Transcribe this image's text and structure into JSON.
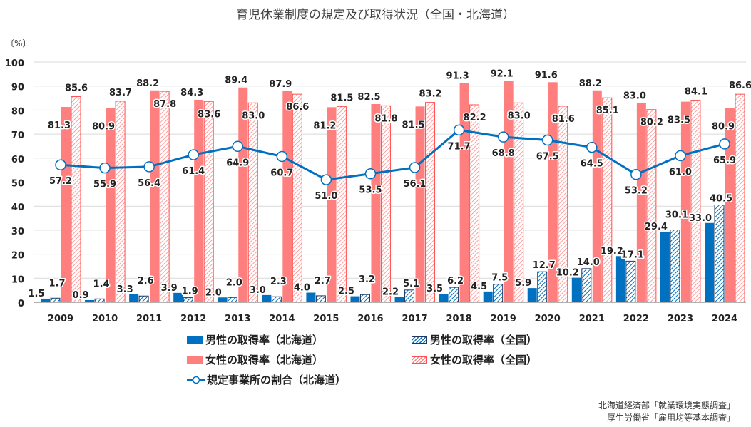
{
  "chart_data": {
    "type": "bar",
    "title": "育児休業制度の規定及び取得状況（全国・北海道）",
    "ylabel": "〔%〕",
    "ylim": [
      0,
      100
    ],
    "yticks": [
      0,
      10,
      20,
      30,
      40,
      50,
      60,
      70,
      80,
      90,
      100
    ],
    "grid": true,
    "legend_placement": "bottom",
    "categories": [
      "2009",
      "2010",
      "2011",
      "2012",
      "2013",
      "2014",
      "2015",
      "2016",
      "2017",
      "2018",
      "2019",
      "2020",
      "2021",
      "2022",
      "2023",
      "2024"
    ],
    "series": [
      {
        "name": "男性の取得率（北海道）",
        "kind": "bar",
        "color": "#0070c0",
        "pattern": "solid",
        "values": [
          1.5,
          0.9,
          3.3,
          3.9,
          2.0,
          3.0,
          4.0,
          2.5,
          2.2,
          3.5,
          4.5,
          5.9,
          10.2,
          19.2,
          29.4,
          33.0
        ]
      },
      {
        "name": "男性の取得率（全国）",
        "kind": "bar",
        "color": "#1f3864",
        "pattern": "hatch",
        "values": [
          1.7,
          1.4,
          2.6,
          1.9,
          2.0,
          2.3,
          2.7,
          3.2,
          5.1,
          6.2,
          7.5,
          12.7,
          14.0,
          17.1,
          30.1,
          40.5
        ]
      },
      {
        "name": "女性の取得率（北海道）",
        "kind": "bar",
        "color": "#ff7f7f",
        "pattern": "solid",
        "values": [
          81.3,
          80.9,
          88.2,
          84.3,
          89.4,
          87.9,
          81.2,
          82.5,
          81.5,
          91.3,
          92.1,
          91.6,
          88.2,
          83.0,
          83.5,
          80.9
        ]
      },
      {
        "name": "女性の取得率（全国）",
        "kind": "bar",
        "color": "#ff5050",
        "pattern": "hatch",
        "values": [
          85.6,
          83.7,
          87.8,
          83.6,
          83.0,
          86.6,
          81.5,
          81.8,
          83.2,
          82.2,
          83.0,
          81.6,
          85.1,
          80.2,
          84.1,
          86.6
        ]
      },
      {
        "name": "規定事業所の割合（北海道）",
        "kind": "line",
        "color": "#0070c0",
        "values": [
          57.2,
          55.9,
          56.4,
          61.4,
          64.9,
          60.7,
          51.0,
          53.5,
          56.1,
          71.7,
          68.8,
          67.5,
          64.5,
          53.2,
          61.0,
          65.9
        ]
      }
    ]
  },
  "source": [
    "北海道経済部「就業環境実態調査」",
    "厚生労働省「雇用均等基本調査」"
  ]
}
